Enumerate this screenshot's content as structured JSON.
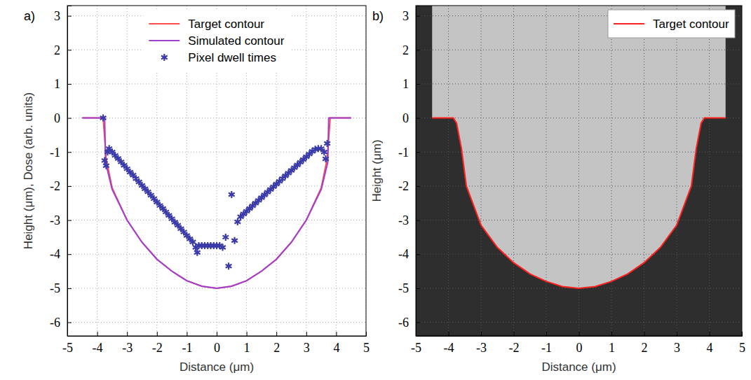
{
  "chart_data": [
    {
      "type": "line",
      "title": "a)",
      "x_label": "Distance (μm)",
      "y_label": "Height (μm), Dose (arb. units)",
      "xlim": [
        -5,
        5
      ],
      "ylim": [
        -6.4,
        3.3
      ],
      "xticks": [
        -5,
        -4,
        -3,
        -2,
        -1,
        0,
        1,
        2,
        3,
        4,
        5
      ],
      "yticks": [
        -6,
        -5,
        -4,
        -3,
        -2,
        -1,
        0,
        1,
        2,
        3
      ],
      "grid": true,
      "legend": "upper center",
      "series": [
        {
          "name": "Target contour",
          "color": "#ff4a4a",
          "type": "line",
          "x": [
            -4.5,
            -3.8,
            -3.75,
            -3.7,
            -3.5,
            -3,
            -2.5,
            -2,
            -1.5,
            -1,
            -0.5,
            0,
            0.5,
            1,
            1.5,
            2,
            2.5,
            3,
            3.5,
            3.7,
            3.75,
            3.8,
            4.5
          ],
          "values": [
            0,
            0,
            -0.6,
            -1.2,
            -2.05,
            -3.0,
            -3.65,
            -4.15,
            -4.5,
            -4.78,
            -4.94,
            -5.0,
            -4.94,
            -4.78,
            -4.5,
            -4.15,
            -3.65,
            -3.0,
            -2.05,
            -1.2,
            -0.6,
            0,
            0
          ]
        },
        {
          "name": "Simulated contour",
          "color": "#a040d0",
          "type": "line",
          "x": [
            -4.5,
            -3.75,
            -3.72,
            -3.5,
            -3,
            -2.5,
            -2,
            -1.5,
            -1,
            -0.5,
            0,
            0.5,
            1,
            1.5,
            2,
            2.5,
            3,
            3.5,
            3.72,
            3.75,
            4.5
          ],
          "values": [
            0,
            0,
            -1.3,
            -2.1,
            -3.0,
            -3.65,
            -4.15,
            -4.5,
            -4.78,
            -4.94,
            -5.0,
            -4.94,
            -4.78,
            -4.5,
            -4.15,
            -3.65,
            -3.0,
            -2.1,
            -1.3,
            0,
            0
          ]
        },
        {
          "name": "Pixel dwell times",
          "color": "#3a3aa8",
          "type": "scatter",
          "marker": "asterisk",
          "x": [
            -3.8,
            -3.75,
            -3.7,
            -3.65,
            -3.6,
            -3.5,
            -3.4,
            -3.3,
            -3.2,
            -3.1,
            -3.0,
            -2.9,
            -2.8,
            -2.7,
            -2.6,
            -2.5,
            -2.4,
            -2.3,
            -2.2,
            -2.1,
            -2.0,
            -1.9,
            -1.8,
            -1.7,
            -1.6,
            -1.5,
            -1.4,
            -1.3,
            -1.2,
            -1.1,
            -1.0,
            -0.9,
            -0.8,
            -0.7,
            -0.65,
            -0.6,
            -0.5,
            -0.4,
            -0.3,
            -0.2,
            -0.1,
            0,
            0.1,
            0.2,
            0.3,
            0.4,
            0.5,
            0.6,
            0.7,
            0.8,
            0.9,
            1.0,
            1.1,
            1.2,
            1.3,
            1.4,
            1.5,
            1.6,
            1.7,
            1.8,
            1.9,
            2.0,
            2.1,
            2.2,
            2.3,
            2.4,
            2.5,
            2.6,
            2.7,
            2.8,
            2.9,
            3.0,
            3.1,
            3.2,
            3.3,
            3.4,
            3.5,
            3.6,
            3.65,
            3.7
          ],
          "values": [
            0,
            -1.25,
            -1.4,
            -1.0,
            -0.9,
            -1.0,
            -1.1,
            -1.19,
            -1.29,
            -1.39,
            -1.49,
            -1.59,
            -1.68,
            -1.78,
            -1.88,
            -1.98,
            -2.08,
            -2.17,
            -2.27,
            -2.37,
            -2.47,
            -2.57,
            -2.66,
            -2.76,
            -2.86,
            -2.96,
            -3.06,
            -3.15,
            -3.25,
            -3.35,
            -3.45,
            -3.55,
            -3.64,
            -3.8,
            -3.95,
            -3.75,
            -3.75,
            -3.75,
            -3.75,
            -3.75,
            -3.75,
            -3.75,
            -3.75,
            -3.8,
            -3.5,
            -4.35,
            -2.25,
            -3.6,
            -3.05,
            -2.9,
            -2.82,
            -2.74,
            -2.66,
            -2.58,
            -2.5,
            -2.42,
            -2.34,
            -2.26,
            -2.18,
            -2.1,
            -2.02,
            -1.94,
            -1.86,
            -1.78,
            -1.7,
            -1.62,
            -1.54,
            -1.46,
            -1.38,
            -1.3,
            -1.22,
            -1.14,
            -1.06,
            -0.98,
            -0.92,
            -0.9,
            -0.9,
            -1.0,
            -1.2,
            -0.75
          ]
        }
      ]
    },
    {
      "type": "line",
      "title": "b)",
      "x_label": "Distance (μm)",
      "y_label": "Height (μm)",
      "xlim": [
        -5,
        5
      ],
      "ylim": [
        -6.4,
        3.3
      ],
      "xticks": [
        -5,
        -4,
        -3,
        -2,
        -1,
        0,
        1,
        2,
        3,
        4,
        5
      ],
      "yticks": [
        -6,
        -5,
        -4,
        -3,
        -2,
        -1,
        0,
        1,
        2,
        3
      ],
      "grid": true,
      "legend": "upper right",
      "series": [
        {
          "name": "Target contour",
          "color": "#ff2020",
          "type": "line",
          "x": [
            -4.5,
            -3.85,
            -3.75,
            -3.6,
            -3.45,
            -3,
            -2.5,
            -2,
            -1.5,
            -1,
            -0.5,
            0,
            0.5,
            1,
            1.5,
            2,
            2.5,
            3,
            3.45,
            3.6,
            3.75,
            3.85,
            4.5
          ],
          "values": [
            0,
            0,
            -0.15,
            -0.9,
            -2.0,
            -3.15,
            -3.8,
            -4.25,
            -4.58,
            -4.8,
            -4.95,
            -5.0,
            -4.95,
            -4.8,
            -4.58,
            -4.25,
            -3.8,
            -3.15,
            -2.0,
            -0.9,
            -0.15,
            0,
            0
          ]
        }
      ]
    }
  ]
}
